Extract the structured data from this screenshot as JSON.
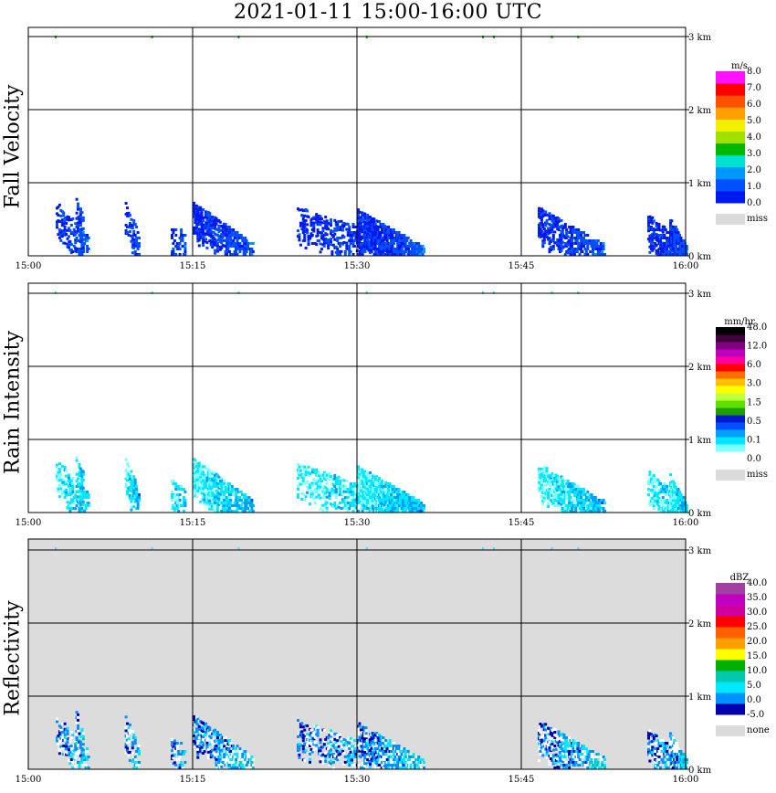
{
  "title": "2021-01-11   15:00-16:00 UTC",
  "x_ticks": [
    "15:00",
    "15:15",
    "15:30",
    "15:45",
    "16:00"
  ],
  "y_ticks": [
    "0 km",
    "1 km",
    "2 km",
    "3 km"
  ],
  "panels": [
    {
      "label": "Fall Velocity",
      "background": "#ffffff",
      "legend": {
        "unit": "m/s",
        "colors": [
          "#0018f0",
          "#0050ff",
          "#0098ff",
          "#00e0d0",
          "#00b800",
          "#a0e000",
          "#f0f000",
          "#ffa000",
          "#ff5000",
          "#ff0000",
          "#ff10ff"
        ],
        "labels": [
          "0.0",
          "1.0",
          "2.0",
          "3.0",
          "4.0",
          "5.0",
          "6.0",
          "7.0",
          "8.0"
        ],
        "miss_label": "miss",
        "miss_color": "#dcdcdc"
      }
    },
    {
      "label": "Rain Intensity",
      "background": "#ffffff",
      "legend": {
        "unit": "mm/hr",
        "colors": [
          "#ffffff",
          "#80ffff",
          "#00e8ff",
          "#00a0ff",
          "#0050ff",
          "#0018d0",
          "#20a000",
          "#60e000",
          "#c0ff40",
          "#ffff00",
          "#ffc000",
          "#ff7000",
          "#ff0000",
          "#ff00a0",
          "#c000c0",
          "#800080",
          "#400040",
          "#000000"
        ],
        "labels": [
          "0.0",
          "0.1",
          "0.5",
          "1.5",
          "3.0",
          "6.0",
          "12.0",
          "48.0"
        ],
        "miss_label": "miss",
        "miss_color": "#dcdcdc"
      }
    },
    {
      "label": "Reflectivity",
      "background": "#dcdcdc",
      "legend": {
        "unit": "dBZ",
        "colors": [
          "#0000b0",
          "#0090ff",
          "#00e8ff",
          "#00c8b0",
          "#00b000",
          "#ffff00",
          "#ffa000",
          "#ff6000",
          "#ff0000",
          "#d000a0",
          "#c000c0",
          "#a040a0"
        ],
        "labels": [
          "-5.0",
          "0.0",
          "5.0",
          "10.0",
          "15.0",
          "20.0",
          "25.0",
          "30.0",
          "35.0",
          "40.0"
        ],
        "miss_label": "none",
        "miss_color": "#dcdcdc"
      }
    }
  ],
  "chart_data": {
    "type": "heatmap",
    "x_range": [
      "15:00",
      "16:00"
    ],
    "y_range_km": [
      0,
      3.5
    ],
    "observations": [
      {
        "x_min": [
          2.5,
          5.5
        ],
        "y_km": [
          0.2,
          0.7
        ],
        "note": "rain"
      },
      {
        "x_min": [
          8.8,
          10.0
        ],
        "y_km": [
          0.2,
          0.7
        ],
        "note": "rain"
      },
      {
        "x_min": [
          13.0,
          14.3
        ],
        "y_km": [
          0.25,
          0.45
        ],
        "note": "rain"
      },
      {
        "x_min": [
          15.0,
          22.0
        ],
        "y_km": [
          0.0,
          0.7
        ],
        "note": "rain"
      },
      {
        "x_min": [
          24.5,
          36.0
        ],
        "y_km": [
          0.0,
          0.65
        ],
        "note": "rain"
      },
      {
        "x_min": [
          36.5,
          45.0
        ],
        "y_km": [
          0.0,
          0.65
        ],
        "note": "rain"
      },
      {
        "x_min": [
          46.5,
          52.5
        ],
        "y_km": [
          0.0,
          0.65
        ],
        "note": "rain"
      },
      {
        "x_min": [
          58.0,
          60.0
        ],
        "y_km": [
          0.0,
          0.55
        ],
        "note": "rain"
      }
    ]
  }
}
